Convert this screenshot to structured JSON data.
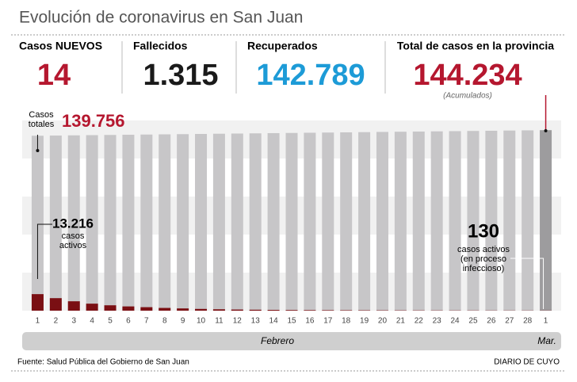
{
  "header": {
    "title": "Evolución de coronavirus en San Juan"
  },
  "stats": [
    {
      "label": "Casos NUEVOS",
      "value": "14",
      "color": "#b5172f"
    },
    {
      "label": "Fallecidos",
      "value": "1.315",
      "color": "#1a1a1a"
    },
    {
      "label": "Recuperados",
      "value": "142.789",
      "color": "#1d9bd7"
    },
    {
      "label": "Total de casos en la provincia",
      "value": "144.234",
      "color": "#b5172f",
      "note": "(Acumulados)"
    }
  ],
  "chart_data": {
    "type": "bar",
    "categories": [
      "1",
      "2",
      "3",
      "4",
      "5",
      "6",
      "7",
      "8",
      "9",
      "10",
      "11",
      "12",
      "13",
      "14",
      "15",
      "16",
      "17",
      "18",
      "19",
      "20",
      "21",
      "22",
      "23",
      "24",
      "25",
      "26",
      "27",
      "28",
      "1"
    ],
    "ylim": [
      0,
      145000
    ],
    "series": [
      {
        "name": "Casos totales",
        "color": "#c7c6c8",
        "values": [
          139756,
          139920,
          140080,
          140240,
          140400,
          140560,
          140720,
          140880,
          141040,
          141200,
          141360,
          141520,
          141680,
          141840,
          142000,
          142160,
          142320,
          142480,
          142640,
          142800,
          142960,
          143120,
          143280,
          143440,
          143600,
          143760,
          143920,
          144080,
          144234
        ],
        "value_labels": [
          "139.756",
          null,
          null,
          null,
          null,
          null,
          null,
          null,
          null,
          null,
          null,
          null,
          null,
          null,
          null,
          null,
          null,
          null,
          null,
          null,
          null,
          null,
          null,
          null,
          null,
          null,
          null,
          null,
          null
        ]
      },
      {
        "name": "casos activos",
        "color": "#7a0f13",
        "values": [
          13216,
          10000,
          7500,
          5600,
          4300,
          3400,
          2800,
          2200,
          1800,
          1400,
          1100,
          900,
          750,
          620,
          520,
          450,
          390,
          340,
          300,
          270,
          240,
          210,
          190,
          170,
          160,
          150,
          140,
          135,
          130
        ],
        "value_labels": [
          "13.216",
          null,
          null,
          null,
          null,
          null,
          null,
          null,
          null,
          null,
          null,
          null,
          null,
          null,
          null,
          null,
          null,
          null,
          null,
          null,
          null,
          null,
          null,
          null,
          null,
          null,
          null,
          null,
          "130"
        ]
      }
    ],
    "annotations": {
      "total_lines": [
        "Casos",
        "totales"
      ],
      "active_first": [
        "casos",
        "activos"
      ],
      "active_last": [
        "casos activos",
        "(en proceso",
        "infeccioso)"
      ]
    },
    "months": [
      "Febrero",
      "Mar."
    ],
    "last_bar_color": "#9d9c9e"
  },
  "footer": {
    "source": "Fuente: Salud Pública del Gobierno de San Juan",
    "brand": "DIARIO DE CUYO"
  }
}
